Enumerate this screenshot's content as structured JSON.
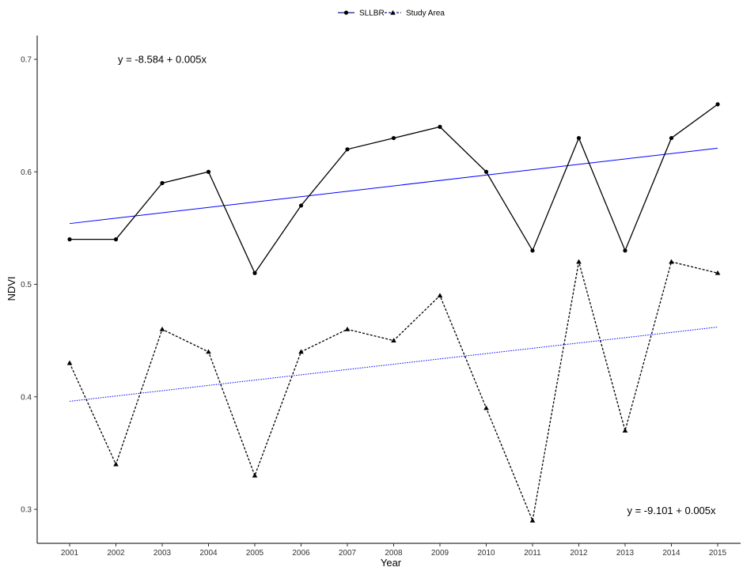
{
  "chart_data": {
    "type": "line",
    "xlabel": "Year",
    "ylabel": "NDVI",
    "x": [
      2001,
      2002,
      2003,
      2004,
      2005,
      2006,
      2007,
      2008,
      2009,
      2010,
      2011,
      2012,
      2013,
      2014,
      2015
    ],
    "ylim": [
      0.28,
      0.72
    ],
    "yticks": [
      0.3,
      0.4,
      0.5,
      0.6,
      0.7
    ],
    "grid": false,
    "legend_position": "top",
    "series": [
      {
        "name": "SLLBR",
        "marker": "circle",
        "line_style": "solid",
        "color": "#000000",
        "values": [
          0.54,
          0.54,
          0.59,
          0.6,
          0.51,
          0.57,
          0.62,
          0.63,
          0.64,
          0.6,
          0.53,
          0.63,
          0.53,
          0.63,
          0.66
        ]
      },
      {
        "name": "Study Area",
        "marker": "triangle",
        "line_style": "dashed",
        "color": "#000000",
        "values": [
          0.43,
          0.34,
          0.46,
          0.44,
          0.33,
          0.44,
          0.46,
          0.45,
          0.49,
          0.39,
          0.29,
          0.52,
          0.37,
          0.52,
          0.51
        ]
      }
    ],
    "trend_lines": [
      {
        "series": "SLLBR",
        "color": "#0000ff",
        "line_style": "solid",
        "start": [
          2001,
          0.554
        ],
        "end": [
          2015,
          0.621
        ]
      },
      {
        "series": "Study Area",
        "color": "#0000ff",
        "line_style": "dotted",
        "start": [
          2001,
          0.396
        ],
        "end": [
          2015,
          0.462
        ]
      }
    ],
    "annotations": [
      {
        "text": "y = -8.584 + 0.005x",
        "x": 2003,
        "y": 0.7
      },
      {
        "text": "y = -9.101 + 0.005x",
        "x": 2014,
        "y": 0.299
      }
    ]
  }
}
